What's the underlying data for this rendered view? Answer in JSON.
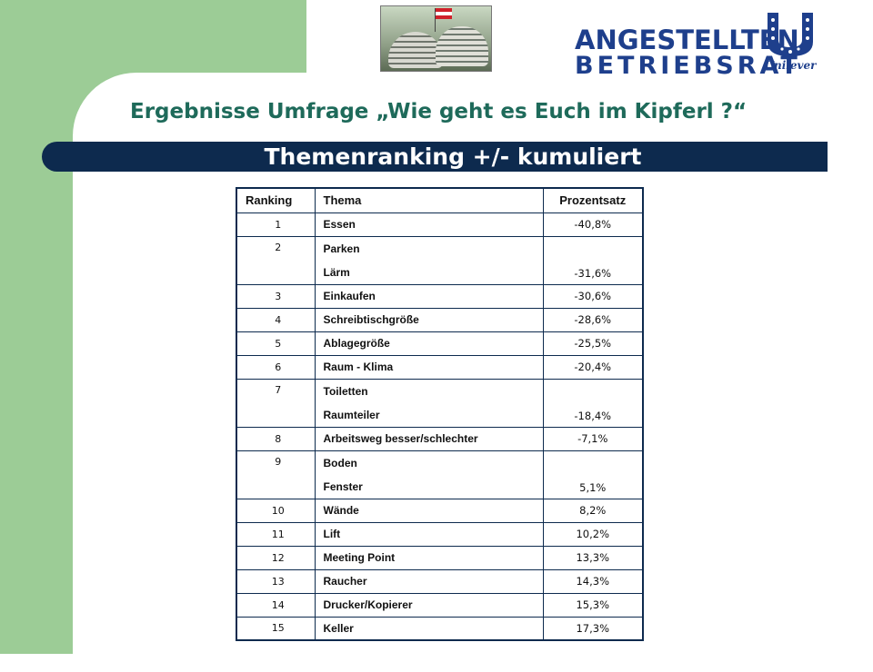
{
  "header": {
    "logo_line1": "ANGESTELLTEN",
    "logo_line2": "BETRIEBSRAT",
    "brand": "Unilever",
    "photo_alt": "Kipferl-building-photo"
  },
  "title": "Ergebnisse Umfrage „Wie geht es Euch im Kipferl ?“",
  "banner": "Themenranking +/- kumuliert",
  "table": {
    "columns": [
      "Ranking",
      "Thema",
      "Prozentsatz"
    ],
    "rows": [
      {
        "rank": "1",
        "themes": [
          "Essen"
        ],
        "percent": "-40,8%"
      },
      {
        "rank": "2",
        "themes": [
          "Parken",
          "Lärm"
        ],
        "percent": "-31,6%"
      },
      {
        "rank": "3",
        "themes": [
          "Einkaufen"
        ],
        "percent": "-30,6%"
      },
      {
        "rank": "4",
        "themes": [
          "Schreibtischgröße"
        ],
        "percent": "-28,6%"
      },
      {
        "rank": "5",
        "themes": [
          "Ablagegröße"
        ],
        "percent": "-25,5%"
      },
      {
        "rank": "6",
        "themes": [
          "Raum - Klima"
        ],
        "percent": "-20,4%"
      },
      {
        "rank": "7",
        "themes": [
          "Toiletten",
          "Raumteiler"
        ],
        "percent": "-18,4%"
      },
      {
        "rank": "8",
        "themes": [
          "Arbeitsweg besser/schlechter"
        ],
        "percent": "-7,1%"
      },
      {
        "rank": "9",
        "themes": [
          "Boden",
          "Fenster"
        ],
        "percent": "5,1%"
      },
      {
        "rank": "10",
        "themes": [
          "Wände"
        ],
        "percent": "8,2%"
      },
      {
        "rank": "11",
        "themes": [
          "Lift"
        ],
        "percent": "10,2%"
      },
      {
        "rank": "12",
        "themes": [
          "Meeting Point"
        ],
        "percent": "13,3%"
      },
      {
        "rank": "13",
        "themes": [
          "Raucher"
        ],
        "percent": "14,3%"
      },
      {
        "rank": "14",
        "themes": [
          "Drucker/Kopierer"
        ],
        "percent": "15,3%"
      },
      {
        "rank": "15",
        "themes": [
          "Keller"
        ],
        "percent": "17,3%"
      }
    ]
  },
  "colors": {
    "green_band": "#9ccc96",
    "navy": "#0d2a4e",
    "title_teal": "#1e6a5a",
    "logo_blue": "#1e3f8c"
  }
}
